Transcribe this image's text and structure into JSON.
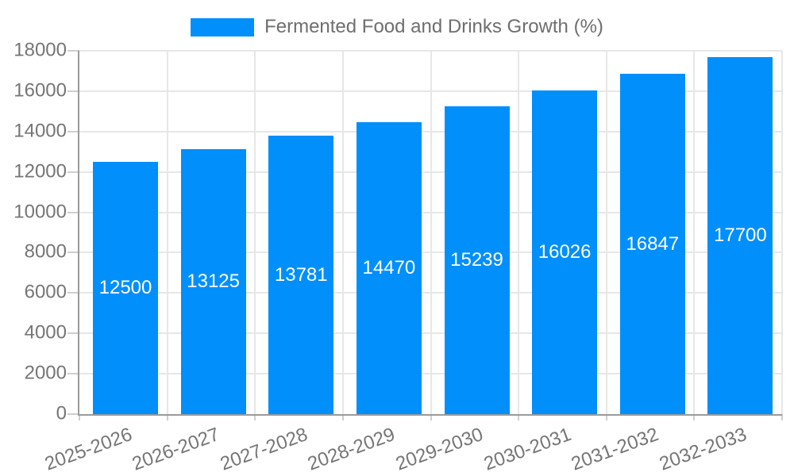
{
  "chart_data": {
    "type": "bar",
    "title": "Fermented Food and Drinks Growth (%)",
    "categories": [
      "2025-2026",
      "2026-2027",
      "2027-2028",
      "2028-2029",
      "2029-2030",
      "2030-2031",
      "2031-2032",
      "2032-2033"
    ],
    "series": [
      {
        "name": "Fermented Food and Drinks Growth (%)",
        "values": [
          12500,
          13125,
          13781,
          14470,
          15239,
          16026,
          16847,
          17700
        ]
      }
    ],
    "value_labels": [
      "12500",
      "13125",
      "13781",
      "14470",
      "15239",
      "16026",
      "16847",
      "17700"
    ],
    "value_label_position": "inside-middle",
    "xlabel": "",
    "ylabel": "",
    "ylim": [
      0,
      18000
    ],
    "ytick_step": 2000,
    "yticks": [
      "0",
      "2000",
      "4000",
      "6000",
      "8000",
      "10000",
      "12000",
      "14000",
      "16000",
      "18000"
    ],
    "x_label_rotation_deg": -20,
    "grid": true,
    "legend_position": "top",
    "legend_marker": "rect",
    "colors": {
      "bar": "#008FFB",
      "value_label": "#FFFFFF",
      "axis_text": "#757575",
      "legend_text": "#6E6E6E",
      "grid": "#E7E7E7",
      "axis_line": "#9A9A9A",
      "tick": "#CFCFCF",
      "background": "#FFFFFF"
    }
  }
}
